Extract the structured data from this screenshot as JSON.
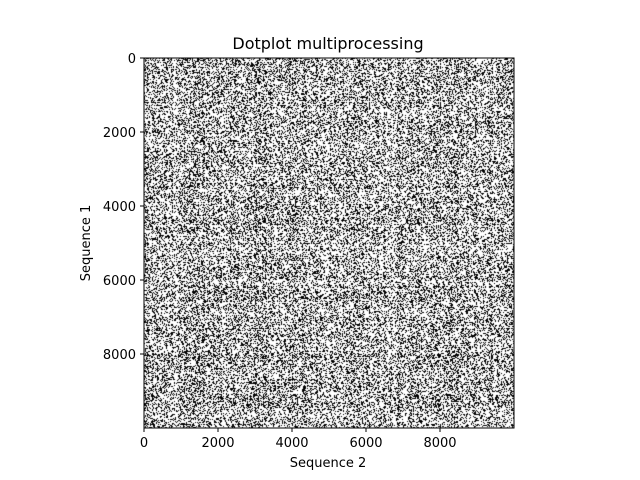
{
  "chart_data": {
    "type": "heatmap",
    "title": "Dotplot multiprocessing",
    "xlabel": "Sequence 2",
    "ylabel": "Sequence 1",
    "xlim": [
      0,
      10000
    ],
    "ylim": [
      10000,
      0
    ],
    "y_axis_inverted": true,
    "x_ticks": [
      0,
      2000,
      4000,
      6000,
      8000
    ],
    "y_ticks": [
      0,
      2000,
      4000,
      6000,
      8000
    ],
    "x_tick_labels": [
      "0",
      "2000",
      "4000",
      "6000",
      "8000"
    ],
    "y_tick_labels": [
      "0",
      "2000",
      "4000",
      "6000",
      "8000"
    ],
    "grid": false,
    "legend": "none",
    "colormap": [
      "#ffffff",
      "#000000"
    ],
    "matrix_size": [
      10000,
      10000
    ]
  }
}
